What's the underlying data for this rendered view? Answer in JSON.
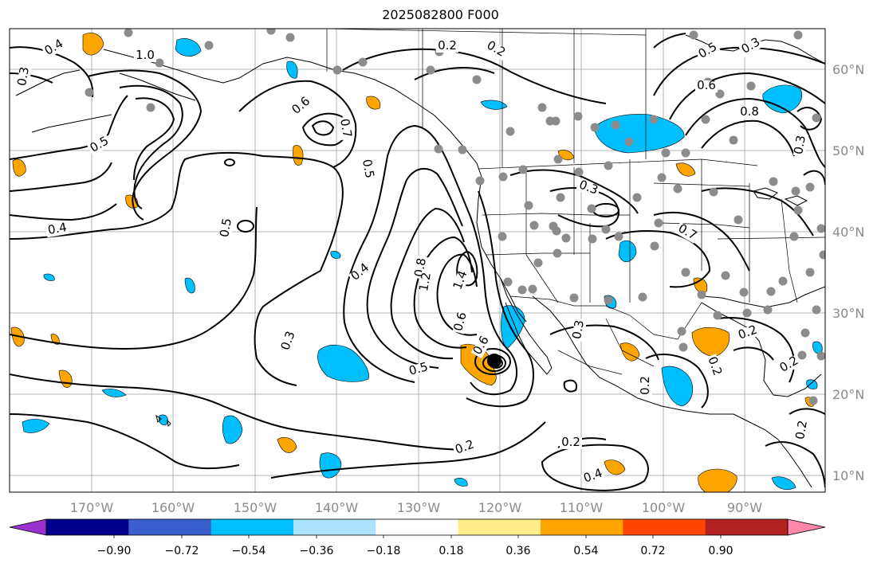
{
  "title": "2025082800 F000",
  "map": {
    "lon_labels": [
      "170°W",
      "160°W",
      "150°W",
      "140°W",
      "130°W",
      "120°W",
      "110°W",
      "100°W",
      "90°W"
    ],
    "lat_labels": [
      "60°N",
      "50°N",
      "40°N",
      "30°N",
      "20°N",
      "10°N"
    ],
    "contour_labels": [
      "0.4",
      "1.0",
      "0.5",
      "0.6",
      "0.7",
      "0.5",
      "0.4",
      "0.5",
      "0.3",
      "0.4",
      "0.8",
      "1.2",
      "1.4",
      "0.6",
      "0.5",
      "0.6",
      "0.2",
      "0.3",
      "0.2",
      "0.2",
      "0.3",
      "0.2",
      "0.4",
      "0.7",
      "0.5",
      "0.6",
      "0.8",
      "0.3",
      "0.3",
      "0.2",
      "0.2",
      "0.2",
      "0.2",
      "0.3",
      "0.2"
    ],
    "colors": {
      "land_lines": "#000000",
      "grid": "#9e9e9e",
      "station_dots": "#8c8c8c",
      "negative_fill": "#00bfff",
      "positive_fill": "#ffa500"
    }
  },
  "colorbar": {
    "ticks": [
      "−0.90",
      "−0.72",
      "−0.54",
      "−0.36",
      "−0.18",
      "0.18",
      "0.36",
      "0.54",
      "0.72",
      "0.90"
    ],
    "colors": [
      "#9932cc",
      "#00008b",
      "#3a5fcd",
      "#00bfff",
      "#aee3ff",
      "#ffffff",
      "#ffec8b",
      "#ffa500",
      "#ff4500",
      "#b22222",
      "#ff88aa"
    ]
  }
}
